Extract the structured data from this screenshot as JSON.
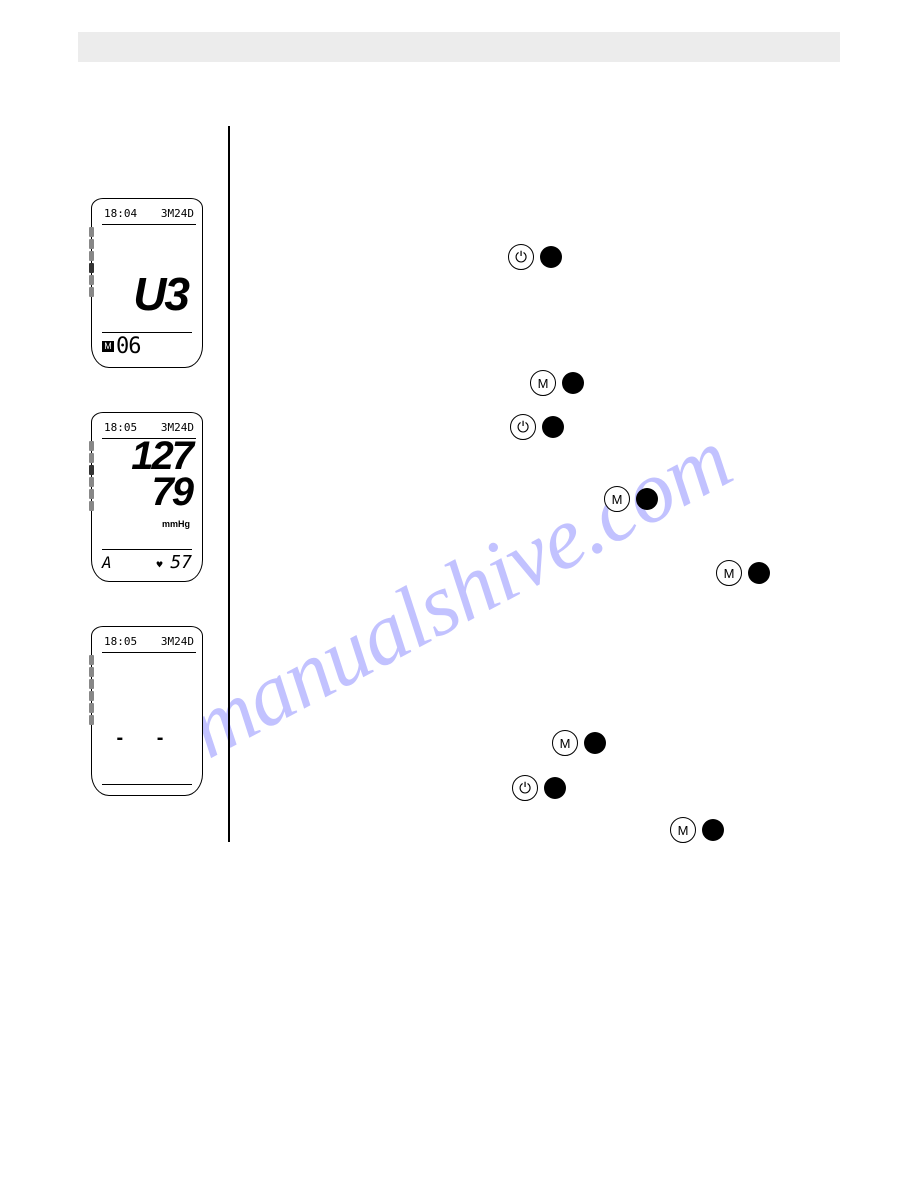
{
  "watermark": "manualshive.com",
  "screens": {
    "s1": {
      "time": "18:04",
      "date": "3M24D",
      "main": "U3",
      "memory_label": "M",
      "memory_value": "06"
    },
    "s2": {
      "time": "18:05",
      "date": "3M24D",
      "systolic": "127",
      "diastolic": "79",
      "unit": "mmHg",
      "average_label": "A",
      "heart": "♥",
      "pulse": "57"
    },
    "s3": {
      "time": "18:05",
      "date": "3M24D",
      "dashes": "- -"
    }
  },
  "buttons": {
    "power": "⏻",
    "memory": "M"
  },
  "colors": {
    "watermark": "rgba(120,120,255,0.45)",
    "header": "#ececec",
    "bg": "#ffffff",
    "line": "#000000"
  }
}
